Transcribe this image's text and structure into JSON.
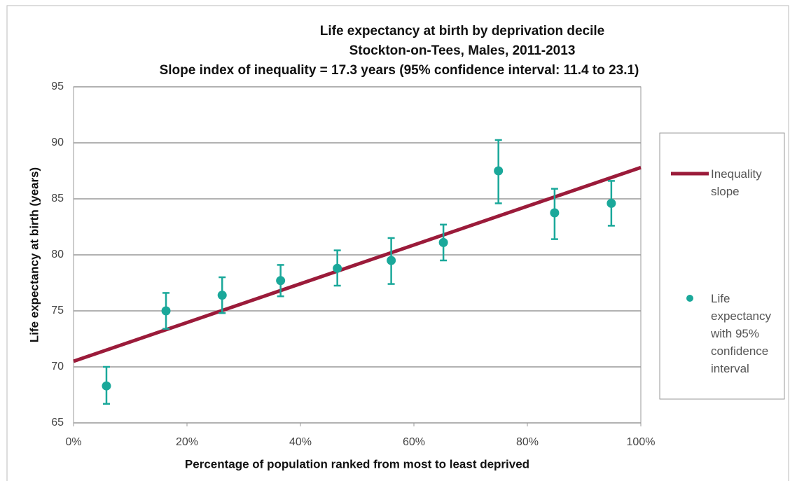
{
  "chart_data": {
    "type": "scatter",
    "title": "Life expectancy at birth by deprivation decile",
    "subtitle": "Stockton-on-Tees, Males, 2011-2013",
    "annotation": "Slope index of inequality = 17.3 years (95% confidence interval: 11.4 to 23.1)",
    "x_label": "Percentage of population ranked from most to least deprived",
    "y_label": "Life expectancy at birth (years)",
    "xlim": [
      0,
      100
    ],
    "ylim": [
      65,
      95
    ],
    "xticks": [
      {
        "value": 0,
        "label": "0%"
      },
      {
        "value": 20,
        "label": "20%"
      },
      {
        "value": 40,
        "label": "40%"
      },
      {
        "value": 60,
        "label": "60%"
      },
      {
        "value": 80,
        "label": "80%"
      },
      {
        "value": 100,
        "label": "100%"
      }
    ],
    "yticks": [
      65,
      70,
      75,
      80,
      85,
      90,
      95
    ],
    "grid": true,
    "legend": "right",
    "series": [
      {
        "name": "Inequality slope",
        "type": "line",
        "color": "#9b1b3a",
        "x": [
          0,
          100
        ],
        "values": [
          70.5,
          87.8
        ]
      },
      {
        "name": "Life expectancy with 95% confidence interval",
        "type": "scatter",
        "color": "#1aa89a",
        "x": [
          5.8,
          16.3,
          26.2,
          36.5,
          46.5,
          56,
          65.2,
          74.9,
          84.8,
          94.8
        ],
        "values": [
          68.3,
          75.0,
          76.4,
          77.7,
          78.8,
          79.5,
          81.1,
          87.5,
          83.75,
          84.6
        ],
        "ci_lower": [
          66.7,
          73.4,
          74.8,
          76.3,
          77.25,
          77.4,
          79.5,
          84.6,
          81.4,
          82.6
        ],
        "ci_upper": [
          70.0,
          76.6,
          78.0,
          79.1,
          80.4,
          81.5,
          82.7,
          90.25,
          85.9,
          86.6
        ]
      }
    ]
  }
}
